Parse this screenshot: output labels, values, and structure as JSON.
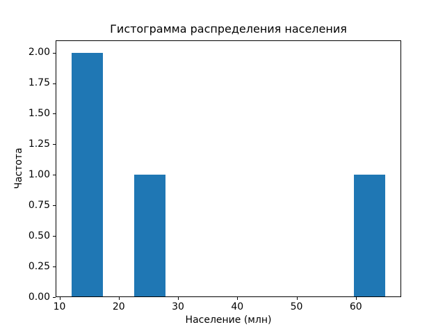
{
  "figure": {
    "background": "#ffffff",
    "text_color": "#000000"
  },
  "chart_data": {
    "type": "bar",
    "subtype": "histogram",
    "title": "Гистограмма распределения населения",
    "xlabel": "Население (млн)",
    "ylabel": "Частота",
    "xlim": [
      9.35,
      67.65
    ],
    "ylim": [
      0,
      2.1
    ],
    "x_ticks": [
      "10",
      "20",
      "30",
      "40",
      "50",
      "60"
    ],
    "x_tick_values": [
      10,
      20,
      30,
      40,
      50,
      60
    ],
    "y_ticks": [
      "0.00",
      "0.25",
      "0.50",
      "0.75",
      "1.00",
      "1.25",
      "1.50",
      "1.75",
      "2.00"
    ],
    "y_tick_values": [
      0,
      0.25,
      0.5,
      0.75,
      1.0,
      1.25,
      1.5,
      1.75,
      2.0
    ],
    "bars": [
      {
        "x0": 12.0,
        "x1": 17.3,
        "height": 2
      },
      {
        "x0": 22.6,
        "x1": 27.9,
        "height": 1
      },
      {
        "x0": 59.7,
        "x1": 65.0,
        "height": 1
      }
    ],
    "bar_color": "#1f77b4",
    "axis_color": "#000000",
    "grid": false,
    "legend": false
  }
}
